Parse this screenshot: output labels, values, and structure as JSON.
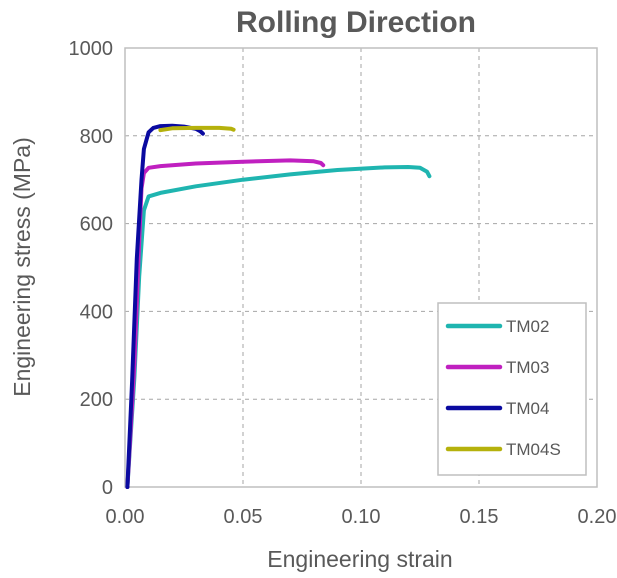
{
  "chart_data": {
    "type": "line",
    "title": "Rolling Direction",
    "xlabel": "Engineering strain",
    "ylabel": "Engineering stress (MPa)",
    "xlim": [
      0,
      0.2
    ],
    "ylim": [
      0,
      1000
    ],
    "x_ticks": [
      "0.00",
      "0.05",
      "0.10",
      "0.15",
      "0.20"
    ],
    "y_ticks": [
      "0",
      "200",
      "400",
      "600",
      "800",
      "1000"
    ],
    "grid": true,
    "legend_position": "bottom-right",
    "series": [
      {
        "name": "TM02",
        "color": "#1fb5b0",
        "points": [
          [
            0.001,
            0
          ],
          [
            0.004,
            250
          ],
          [
            0.006,
            480
          ],
          [
            0.008,
            630
          ],
          [
            0.01,
            662
          ],
          [
            0.015,
            670
          ],
          [
            0.03,
            685
          ],
          [
            0.05,
            700
          ],
          [
            0.07,
            712
          ],
          [
            0.09,
            722
          ],
          [
            0.11,
            728
          ],
          [
            0.12,
            729
          ],
          [
            0.125,
            727
          ],
          [
            0.128,
            718
          ],
          [
            0.129,
            708
          ]
        ]
      },
      {
        "name": "TM03",
        "color": "#c020c0",
        "points": [
          [
            0.001,
            0
          ],
          [
            0.004,
            280
          ],
          [
            0.006,
            560
          ],
          [
            0.007,
            680
          ],
          [
            0.008,
            715
          ],
          [
            0.01,
            727
          ],
          [
            0.015,
            731
          ],
          [
            0.03,
            737
          ],
          [
            0.05,
            741
          ],
          [
            0.07,
            744
          ],
          [
            0.08,
            742
          ],
          [
            0.083,
            738
          ],
          [
            0.084,
            733
          ]
        ]
      },
      {
        "name": "TM04",
        "color": "#0a0aa0",
        "points": [
          [
            0.001,
            0
          ],
          [
            0.003,
            240
          ],
          [
            0.005,
            520
          ],
          [
            0.007,
            700
          ],
          [
            0.008,
            770
          ],
          [
            0.01,
            808
          ],
          [
            0.012,
            818
          ],
          [
            0.015,
            822
          ],
          [
            0.02,
            823
          ],
          [
            0.025,
            821
          ],
          [
            0.03,
            816
          ],
          [
            0.032,
            810
          ],
          [
            0.033,
            805
          ]
        ]
      },
      {
        "name": "TM04S",
        "color": "#b5b10c",
        "points": [
          [
            0.015,
            813
          ],
          [
            0.02,
            817
          ],
          [
            0.03,
            818
          ],
          [
            0.04,
            818
          ],
          [
            0.045,
            816
          ],
          [
            0.046,
            814
          ]
        ]
      }
    ]
  }
}
